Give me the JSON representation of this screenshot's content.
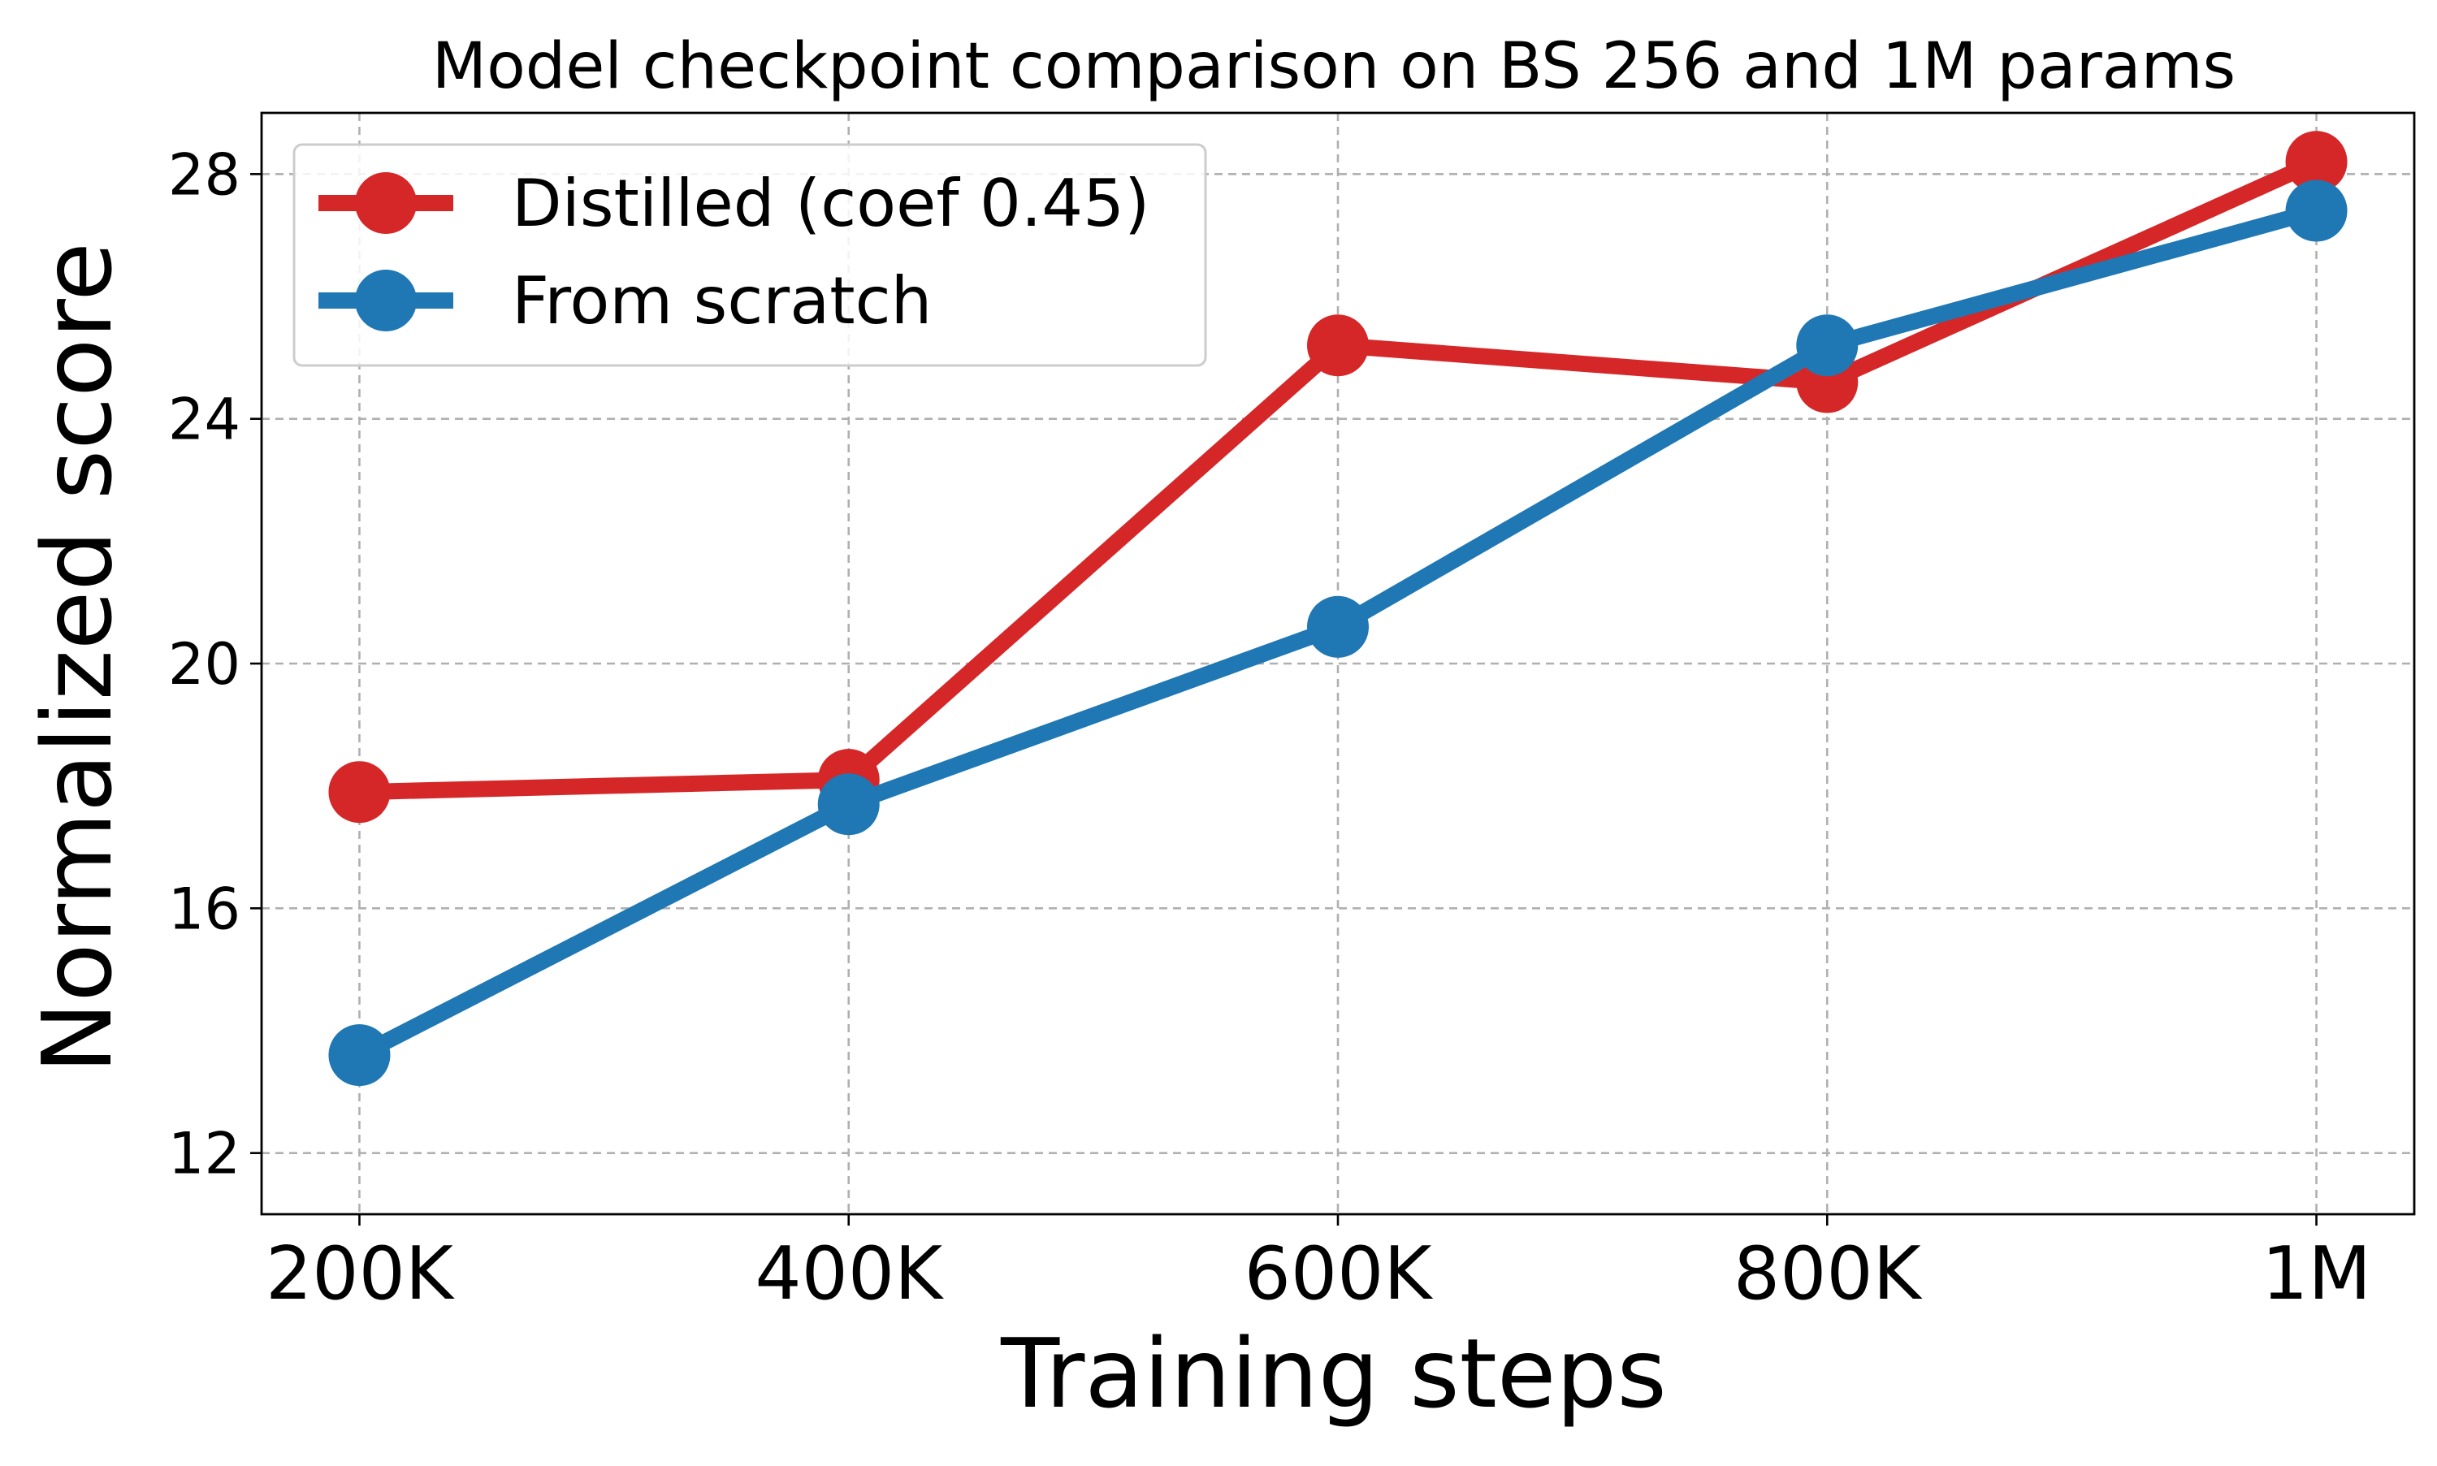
{
  "chart_data": {
    "type": "line",
    "title": "Model checkpoint comparison on BS 256 and 1M params",
    "xlabel": "Training steps",
    "ylabel": "Normalized score",
    "categories": [
      "200K",
      "400K",
      "600K",
      "800K",
      "1M"
    ],
    "x": [
      200000,
      400000,
      600000,
      800000,
      1000000
    ],
    "xlim": [
      160000,
      1040000
    ],
    "ylim": [
      11.0,
      29.0
    ],
    "yticks": [
      12,
      16,
      20,
      24,
      28
    ],
    "ytick_labels": [
      "12",
      "16",
      "20",
      "24",
      "28"
    ],
    "grid": true,
    "legend_position": "upper-left",
    "series": [
      {
        "name": "Distilled (coef 0.45)",
        "color": "#d62728",
        "values": [
          17.9,
          18.1,
          25.2,
          24.6,
          28.2
        ]
      },
      {
        "name": "From scratch",
        "color": "#1f77b4",
        "values": [
          13.6,
          17.7,
          20.6,
          25.2,
          27.4
        ]
      }
    ]
  }
}
